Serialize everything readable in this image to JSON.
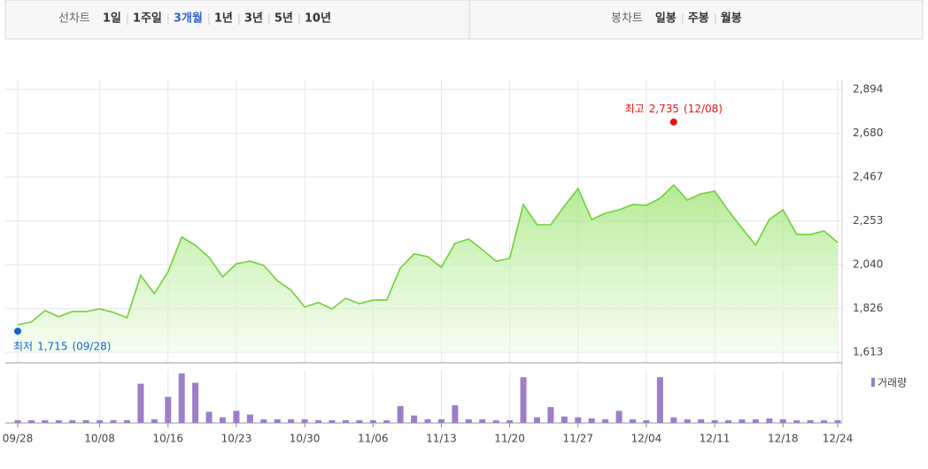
{
  "tabs": {
    "line_label": "선차트",
    "line_options": [
      "1일",
      "1주일",
      "3개월",
      "1년",
      "3년",
      "5년",
      "10년"
    ],
    "line_selected": "3개월",
    "candle_label": "봉차트",
    "candle_options": [
      "일봉",
      "주봉",
      "월봉"
    ]
  },
  "chart_data": {
    "type": "line",
    "color": "#6fd13a",
    "categories": [
      "09/28",
      null,
      null,
      null,
      null,
      null,
      "10/08",
      null,
      null,
      null,
      null,
      "10/16",
      null,
      null,
      null,
      null,
      "10/23",
      null,
      null,
      null,
      null,
      "10/30",
      null,
      null,
      null,
      null,
      "11/06",
      null,
      null,
      null,
      null,
      "11/13",
      null,
      null,
      null,
      null,
      "11/20",
      null,
      null,
      null,
      null,
      "11/27",
      null,
      null,
      null,
      null,
      "12/04",
      null,
      null,
      null,
      null,
      "12/11",
      null,
      null,
      null,
      null,
      "12/18",
      null,
      null,
      null,
      "12/24"
    ],
    "values": [
      1747,
      1760,
      1816,
      1786,
      1811,
      1811,
      1824,
      1807,
      1781,
      1988,
      1898,
      2005,
      2174,
      2135,
      2075,
      1980,
      2044,
      2057,
      2036,
      1962,
      1915,
      1833,
      1855,
      1824,
      1876,
      1850,
      1867,
      1867,
      2023,
      2092,
      2079,
      2027,
      2144,
      2165,
      2113,
      2057,
      2070,
      2333,
      2234,
      2234,
      2325,
      2411,
      2260,
      2290,
      2307,
      2333,
      2329,
      2363,
      2428,
      2355,
      2385,
      2398,
      2303,
      2217,
      2135,
      2260,
      2307,
      2187,
      2187,
      2204,
      2148
    ],
    "ylim": [
      1613,
      2894
    ],
    "yticks": [
      {
        "value": 1613,
        "label": "1,613"
      },
      {
        "value": 1826,
        "label": "1,826"
      },
      {
        "value": 2040,
        "label": "2,040"
      },
      {
        "value": 2253,
        "label": "2,253"
      },
      {
        "value": 2467,
        "label": "2,467"
      },
      {
        "value": 2680,
        "label": "2,680"
      },
      {
        "value": 2894,
        "label": "2,894"
      }
    ],
    "grid": true,
    "high": {
      "label": "최고",
      "value": 2735,
      "value_label": "2,735",
      "date": "(12/08)",
      "color": "#ee1111"
    },
    "low": {
      "label": "최저",
      "value": 1715,
      "value_label": "1,715",
      "date": "(09/28)",
      "color": "#1166cc"
    },
    "volume": {
      "name": "거래량",
      "color": "#9c7fc8",
      "values": [
        3,
        3,
        3,
        3,
        3,
        3,
        3,
        3,
        3,
        42,
        4,
        28,
        53,
        43,
        12,
        6,
        13,
        9,
        4,
        4,
        4,
        4,
        3,
        3,
        3,
        3,
        3,
        3,
        18,
        8,
        4,
        4,
        19,
        4,
        4,
        3,
        3,
        49,
        6,
        17,
        7,
        6,
        5,
        4,
        13,
        4,
        3,
        49,
        6,
        4,
        4,
        3,
        3,
        4,
        4,
        5,
        4,
        3,
        3,
        3,
        3
      ]
    }
  }
}
